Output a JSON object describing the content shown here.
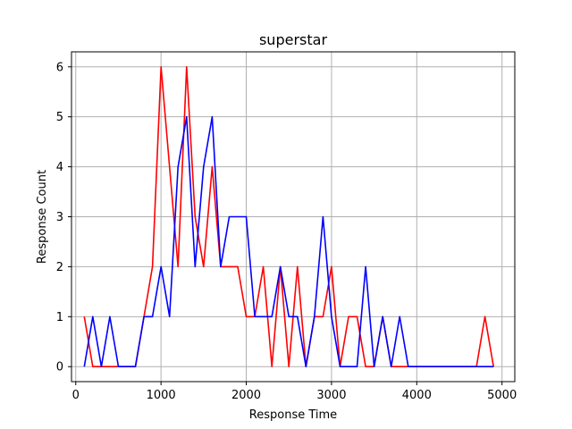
{
  "chart_data": {
    "type": "line",
    "title": "superstar",
    "xlabel": "Response Time",
    "ylabel": "Response Count",
    "xlim": [
      -50,
      5150
    ],
    "ylim": [
      -0.3,
      6.3
    ],
    "xticks": [
      0,
      1000,
      2000,
      3000,
      4000,
      5000
    ],
    "xtick_labels": [
      "0",
      "1000",
      "2000",
      "3000",
      "4000",
      "5000"
    ],
    "yticks": [
      0,
      1,
      2,
      3,
      4,
      5,
      6
    ],
    "ytick_labels": [
      "0",
      "1",
      "2",
      "3",
      "4",
      "5",
      "6"
    ],
    "grid": true,
    "legend": "none",
    "x": [
      100,
      200,
      300,
      400,
      500,
      600,
      700,
      800,
      900,
      1000,
      1100,
      1200,
      1300,
      1400,
      1500,
      1600,
      1700,
      1800,
      1900,
      2000,
      2100,
      2200,
      2300,
      2400,
      2500,
      2600,
      2700,
      2800,
      2900,
      3000,
      3100,
      3200,
      3300,
      3400,
      3500,
      3600,
      3700,
      3800,
      3900,
      4000,
      4100,
      4200,
      4300,
      4400,
      4500,
      4600,
      4700,
      4800,
      4900
    ],
    "series": [
      {
        "color": "#ff0000",
        "values": [
          1,
          0,
          0,
          0,
          0,
          0,
          0,
          1,
          2,
          6,
          4,
          2,
          6,
          3,
          2,
          4,
          2,
          2,
          2,
          1,
          1,
          2,
          0,
          2,
          0,
          2,
          0,
          1,
          1,
          2,
          0,
          1,
          1,
          0,
          0,
          1,
          0,
          0,
          0,
          0,
          0,
          0,
          0,
          0,
          0,
          0,
          0,
          1,
          0
        ]
      },
      {
        "color": "#0000ff",
        "values": [
          0,
          1,
          0,
          1,
          0,
          0,
          0,
          1,
          1,
          2,
          1,
          4,
          5,
          2,
          4,
          5,
          2,
          3,
          3,
          3,
          1,
          1,
          1,
          2,
          1,
          1,
          0,
          1,
          3,
          1,
          0,
          0,
          0,
          2,
          0,
          1,
          0,
          1,
          0,
          0,
          0,
          0,
          0,
          0,
          0,
          0,
          0,
          0,
          0
        ]
      }
    ]
  }
}
